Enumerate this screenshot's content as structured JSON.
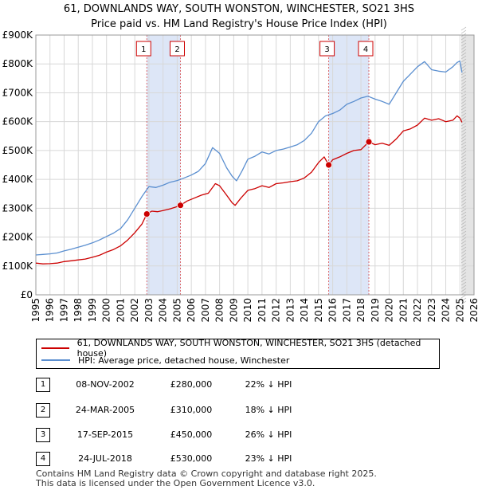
{
  "title": {
    "line1": "61, DOWNLANDS WAY, SOUTH WONSTON, WINCHESTER, SO21 3HS",
    "line2": "Price paid vs. HM Land Registry's House Price Index (HPI)"
  },
  "chart_data": {
    "type": "line",
    "xlim": [
      1995,
      2026
    ],
    "ylim": [
      0,
      900000
    ],
    "x_ticks": [
      1995,
      1996,
      1997,
      1998,
      1999,
      2000,
      2001,
      2002,
      2003,
      2004,
      2005,
      2006,
      2007,
      2008,
      2009,
      2010,
      2011,
      2012,
      2013,
      2014,
      2015,
      2016,
      2017,
      2018,
      2019,
      2020,
      2021,
      2022,
      2023,
      2024,
      2025,
      2026
    ],
    "y_ticks": [
      {
        "value": 0,
        "label": "£0"
      },
      {
        "value": 100000,
        "label": "£100K"
      },
      {
        "value": 200000,
        "label": "£200K"
      },
      {
        "value": 300000,
        "label": "£300K"
      },
      {
        "value": 400000,
        "label": "£400K"
      },
      {
        "value": 500000,
        "label": "£500K"
      },
      {
        "value": 600000,
        "label": "£600K"
      },
      {
        "value": 700000,
        "label": "£700K"
      },
      {
        "value": 800000,
        "label": "£800K"
      },
      {
        "value": 900000,
        "label": "£900K"
      }
    ],
    "series": [
      {
        "name": "61, DOWNLANDS WAY, SOUTH WONSTON, WINCHESTER, SO21 3HS (detached house)",
        "color": "#cc0000",
        "x": [
          1995.0,
          1995.5,
          1996.0,
          1996.5,
          1997.0,
          1997.5,
          1998.0,
          1998.5,
          1999.0,
          1999.5,
          2000.0,
          2000.5,
          2001.0,
          2001.5,
          2002.0,
          2002.5,
          2002.85,
          2003.2,
          2003.6,
          2004.0,
          2004.5,
          2004.9,
          2005.23,
          2005.7,
          2006.2,
          2006.7,
          2007.2,
          2007.7,
          2008.0,
          2008.5,
          2008.9,
          2009.1,
          2009.5,
          2010.0,
          2010.5,
          2011.0,
          2011.5,
          2012.0,
          2012.5,
          2013.0,
          2013.5,
          2014.0,
          2014.5,
          2015.0,
          2015.4,
          2015.72,
          2016.0,
          2016.5,
          2017.0,
          2017.5,
          2018.0,
          2018.56,
          2019.0,
          2019.5,
          2020.0,
          2020.5,
          2021.0,
          2021.5,
          2022.0,
          2022.5,
          2023.0,
          2023.5,
          2024.0,
          2024.5,
          2024.8,
          2025.0,
          2025.15
        ],
        "values": [
          110000,
          107000,
          108000,
          110000,
          115000,
          118000,
          121000,
          124000,
          130000,
          137000,
          148000,
          157000,
          170000,
          190000,
          215000,
          245000,
          280000,
          290000,
          288000,
          292000,
          298000,
          304000,
          310000,
          325000,
          335000,
          345000,
          352000,
          385000,
          378000,
          345000,
          318000,
          310000,
          335000,
          362000,
          368000,
          378000,
          372000,
          385000,
          388000,
          392000,
          395000,
          405000,
          425000,
          458000,
          478000,
          450000,
          468000,
          478000,
          490000,
          500000,
          503000,
          530000,
          520000,
          525000,
          518000,
          540000,
          568000,
          575000,
          588000,
          612000,
          605000,
          610000,
          600000,
          605000,
          620000,
          612000,
          598000
        ],
        "width": 1.3
      },
      {
        "name": "HPI: Average price, detached house, Winchester",
        "color": "#5b8fd0",
        "x": [
          1995.0,
          1995.5,
          1996.0,
          1996.5,
          1997.0,
          1997.5,
          1998.0,
          1998.5,
          1999.0,
          1999.5,
          2000.0,
          2000.5,
          2001.0,
          2001.5,
          2002.0,
          2002.5,
          2003.0,
          2003.5,
          2004.0,
          2004.5,
          2005.0,
          2005.5,
          2006.0,
          2006.5,
          2007.0,
          2007.5,
          2008.0,
          2008.5,
          2008.9,
          2009.2,
          2009.6,
          2010.0,
          2010.5,
          2011.0,
          2011.5,
          2012.0,
          2012.5,
          2013.0,
          2013.5,
          2014.0,
          2014.5,
          2015.0,
          2015.5,
          2016.0,
          2016.5,
          2017.0,
          2017.5,
          2018.0,
          2018.5,
          2019.0,
          2019.5,
          2020.0,
          2020.5,
          2021.0,
          2021.5,
          2022.0,
          2022.5,
          2023.0,
          2023.5,
          2024.0,
          2024.5,
          2024.8,
          2025.0,
          2025.15
        ],
        "values": [
          138000,
          140000,
          142000,
          145000,
          152000,
          158000,
          165000,
          172000,
          180000,
          190000,
          202000,
          214000,
          230000,
          260000,
          300000,
          340000,
          375000,
          372000,
          380000,
          390000,
          396000,
          405000,
          415000,
          428000,
          455000,
          510000,
          490000,
          440000,
          410000,
          395000,
          430000,
          470000,
          480000,
          495000,
          488000,
          500000,
          505000,
          512000,
          520000,
          535000,
          560000,
          600000,
          620000,
          628000,
          640000,
          660000,
          670000,
          682000,
          688000,
          678000,
          670000,
          660000,
          700000,
          740000,
          765000,
          790000,
          808000,
          780000,
          775000,
          772000,
          790000,
          805000,
          810000,
          770000
        ],
        "width": 1.3
      }
    ],
    "sales": [
      {
        "id": "1",
        "x": 2002.85,
        "price": 280000
      },
      {
        "id": "2",
        "x": 2005.23,
        "price": 310000
      },
      {
        "id": "3",
        "x": 2015.72,
        "price": 450000
      },
      {
        "id": "4",
        "x": 2018.56,
        "price": 530000
      }
    ],
    "shaded_spans": [
      [
        2002.85,
        2005.23
      ],
      [
        2015.72,
        2018.56
      ]
    ],
    "forecast_start": 2025.1,
    "grid": true
  },
  "legend": {
    "items": [
      {
        "label": "61, DOWNLANDS WAY, SOUTH WONSTON, WINCHESTER, SO21 3HS (detached house)",
        "color": "#cc0000"
      },
      {
        "label": "HPI: Average price, detached house, Winchester",
        "color": "#5b8fd0"
      }
    ]
  },
  "transactions": [
    {
      "id": "1",
      "date": "08-NOV-2002",
      "price": "£280,000",
      "hpi": "22% ↓ HPI"
    },
    {
      "id": "2",
      "date": "24-MAR-2005",
      "price": "£310,000",
      "hpi": "18% ↓ HPI"
    },
    {
      "id": "3",
      "date": "17-SEP-2015",
      "price": "£450,000",
      "hpi": "26% ↓ HPI"
    },
    {
      "id": "4",
      "date": "24-JUL-2018",
      "price": "£530,000",
      "hpi": "23% ↓ HPI"
    }
  ],
  "footer": {
    "line1": "Contains HM Land Registry data © Crown copyright and database right 2025.",
    "line2": "This data is licensed under the Open Government Licence v3.0."
  }
}
